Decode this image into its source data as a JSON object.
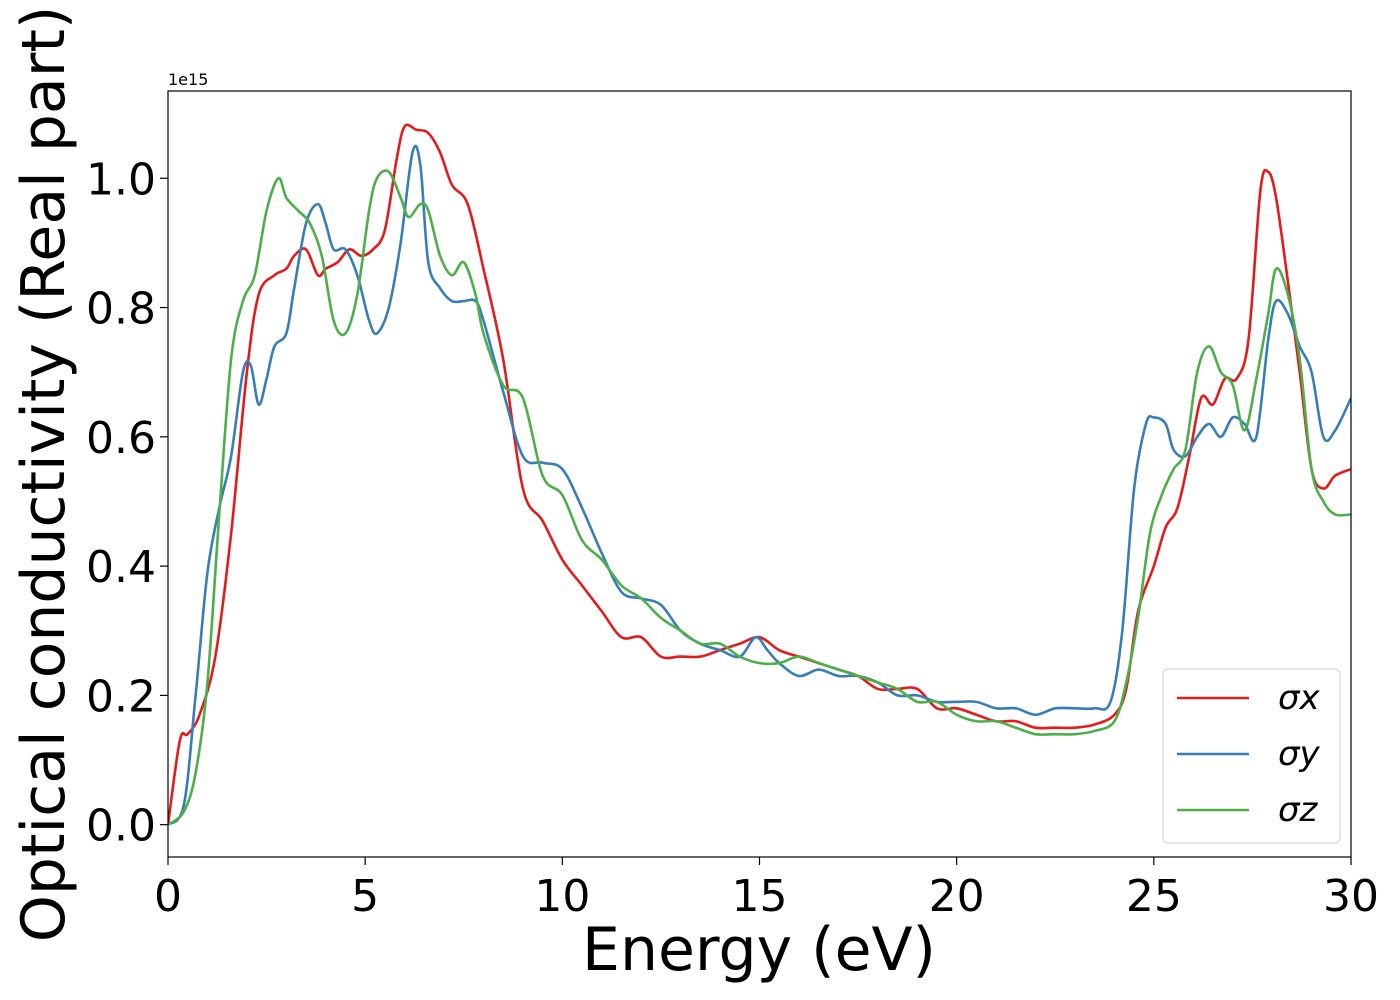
{
  "chart_data": {
    "type": "line",
    "title": "",
    "xlabel": "Energy (eV)",
    "ylabel": "Optical conductivity (Real part)",
    "y_offset_label": "1e15",
    "xlim": [
      0,
      30
    ],
    "ylim": [
      -0.05,
      1.135
    ],
    "xticks": [
      0,
      5,
      10,
      15,
      20,
      25,
      30
    ],
    "xtick_labels": [
      "0",
      "5",
      "10",
      "15",
      "20",
      "25",
      "30"
    ],
    "yticks": [
      0.0,
      0.2,
      0.4,
      0.6,
      0.8,
      1.0
    ],
    "ytick_labels": [
      "0.0",
      "0.2",
      "0.4",
      "0.6",
      "0.8",
      "1.0"
    ],
    "grid": false,
    "legend_position": "lower-right",
    "series": [
      {
        "name": "σx",
        "color": "#e41a1c",
        "x": [
          0,
          0.3,
          0.5,
          0.8,
          1.2,
          1.6,
          2.0,
          2.3,
          2.7,
          3.0,
          3.2,
          3.5,
          3.8,
          4.0,
          4.3,
          4.6,
          4.9,
          5.2,
          5.5,
          5.8,
          6.0,
          6.3,
          6.6,
          6.9,
          7.2,
          7.6,
          8.0,
          8.5,
          9.0,
          9.5,
          10.0,
          10.5,
          11.0,
          11.5,
          12.0,
          12.5,
          13.0,
          13.5,
          14.0,
          14.5,
          15.0,
          15.5,
          16.0,
          16.5,
          17.0,
          17.5,
          18.0,
          18.5,
          19.0,
          19.5,
          20.0,
          20.5,
          21.0,
          21.5,
          22.0,
          22.5,
          23.0,
          23.5,
          24.0,
          24.3,
          24.6,
          25.0,
          25.3,
          25.6,
          25.9,
          26.2,
          26.5,
          26.8,
          27.1,
          27.4,
          27.7,
          27.9,
          28.1,
          28.4,
          28.7,
          29.0,
          29.3,
          29.6,
          30.0
        ],
        "y": [
          0.0,
          0.13,
          0.14,
          0.17,
          0.26,
          0.45,
          0.7,
          0.82,
          0.85,
          0.86,
          0.88,
          0.89,
          0.85,
          0.86,
          0.87,
          0.89,
          0.88,
          0.89,
          0.92,
          1.03,
          1.08,
          1.075,
          1.07,
          1.04,
          0.99,
          0.96,
          0.86,
          0.72,
          0.52,
          0.47,
          0.41,
          0.37,
          0.33,
          0.29,
          0.29,
          0.26,
          0.26,
          0.26,
          0.27,
          0.28,
          0.29,
          0.27,
          0.26,
          0.25,
          0.24,
          0.23,
          0.21,
          0.21,
          0.21,
          0.18,
          0.18,
          0.17,
          0.16,
          0.16,
          0.15,
          0.15,
          0.15,
          0.155,
          0.17,
          0.21,
          0.33,
          0.4,
          0.46,
          0.49,
          0.57,
          0.66,
          0.65,
          0.69,
          0.69,
          0.75,
          0.98,
          1.01,
          0.97,
          0.84,
          0.7,
          0.55,
          0.52,
          0.54,
          0.55
        ]
      },
      {
        "name": "σy",
        "color": "#377eb8",
        "x": [
          0,
          0.4,
          0.7,
          1.0,
          1.3,
          1.6,
          1.9,
          2.1,
          2.3,
          2.5,
          2.7,
          3.0,
          3.2,
          3.5,
          3.8,
          4.0,
          4.2,
          4.5,
          4.8,
          5.1,
          5.3,
          5.6,
          5.9,
          6.2,
          6.4,
          6.6,
          6.9,
          7.2,
          7.5,
          7.8,
          8.0,
          8.5,
          9.0,
          9.5,
          10.0,
          10.5,
          11.0,
          11.5,
          12.0,
          12.5,
          13.0,
          13.5,
          14.0,
          14.5,
          14.9,
          15.2,
          15.5,
          16.0,
          16.5,
          17.0,
          17.5,
          18.0,
          18.5,
          19.0,
          19.5,
          20.0,
          20.5,
          21.0,
          21.5,
          22.0,
          22.5,
          23.0,
          23.5,
          23.9,
          24.2,
          24.5,
          24.8,
          25.0,
          25.3,
          25.5,
          25.8,
          26.1,
          26.4,
          26.7,
          27.0,
          27.3,
          27.6,
          27.9,
          28.1,
          28.4,
          28.7,
          29.0,
          29.3,
          29.6,
          30.0
        ],
        "y": [
          0.0,
          0.03,
          0.2,
          0.39,
          0.49,
          0.57,
          0.7,
          0.71,
          0.65,
          0.69,
          0.74,
          0.76,
          0.83,
          0.93,
          0.96,
          0.93,
          0.89,
          0.89,
          0.85,
          0.78,
          0.76,
          0.8,
          0.9,
          1.04,
          1.02,
          0.87,
          0.83,
          0.81,
          0.81,
          0.81,
          0.78,
          0.67,
          0.57,
          0.56,
          0.55,
          0.49,
          0.42,
          0.36,
          0.35,
          0.34,
          0.3,
          0.28,
          0.27,
          0.26,
          0.29,
          0.27,
          0.25,
          0.23,
          0.24,
          0.23,
          0.23,
          0.22,
          0.2,
          0.2,
          0.19,
          0.19,
          0.19,
          0.18,
          0.18,
          0.17,
          0.18,
          0.18,
          0.18,
          0.19,
          0.3,
          0.52,
          0.62,
          0.63,
          0.62,
          0.58,
          0.57,
          0.6,
          0.62,
          0.6,
          0.63,
          0.62,
          0.6,
          0.75,
          0.81,
          0.79,
          0.74,
          0.7,
          0.6,
          0.61,
          0.66
        ]
      },
      {
        "name": "σz",
        "color": "#4daf4a",
        "x": [
          0,
          0.4,
          0.7,
          1.0,
          1.3,
          1.6,
          1.9,
          2.2,
          2.5,
          2.8,
          3.0,
          3.3,
          3.6,
          3.9,
          4.2,
          4.5,
          4.8,
          5.1,
          5.3,
          5.6,
          5.9,
          6.1,
          6.4,
          6.6,
          6.9,
          7.2,
          7.5,
          7.8,
          8.0,
          8.5,
          9.0,
          9.5,
          10.0,
          10.5,
          11.0,
          11.5,
          12.0,
          12.5,
          13.0,
          13.5,
          14.0,
          14.5,
          15.0,
          15.5,
          16.0,
          16.5,
          17.0,
          17.5,
          18.0,
          18.5,
          19.0,
          19.5,
          20.0,
          20.5,
          21.0,
          21.5,
          22.0,
          22.5,
          23.0,
          23.5,
          24.0,
          24.3,
          24.6,
          24.9,
          25.2,
          25.5,
          25.8,
          26.1,
          26.4,
          26.7,
          27.0,
          27.3,
          27.6,
          27.9,
          28.1,
          28.4,
          28.7,
          29.0,
          29.3,
          29.6,
          30.0
        ],
        "y": [
          0.0,
          0.02,
          0.08,
          0.22,
          0.48,
          0.72,
          0.81,
          0.85,
          0.95,
          1.0,
          0.97,
          0.95,
          0.93,
          0.88,
          0.78,
          0.76,
          0.82,
          0.95,
          1.0,
          1.01,
          0.97,
          0.94,
          0.96,
          0.95,
          0.88,
          0.85,
          0.87,
          0.82,
          0.76,
          0.68,
          0.66,
          0.54,
          0.51,
          0.44,
          0.41,
          0.37,
          0.35,
          0.32,
          0.3,
          0.28,
          0.28,
          0.26,
          0.25,
          0.25,
          0.26,
          0.25,
          0.24,
          0.23,
          0.22,
          0.21,
          0.19,
          0.19,
          0.17,
          0.16,
          0.16,
          0.15,
          0.14,
          0.14,
          0.14,
          0.145,
          0.16,
          0.22,
          0.32,
          0.45,
          0.51,
          0.55,
          0.58,
          0.7,
          0.74,
          0.7,
          0.68,
          0.61,
          0.69,
          0.79,
          0.86,
          0.82,
          0.72,
          0.55,
          0.5,
          0.48,
          0.48
        ]
      }
    ]
  }
}
